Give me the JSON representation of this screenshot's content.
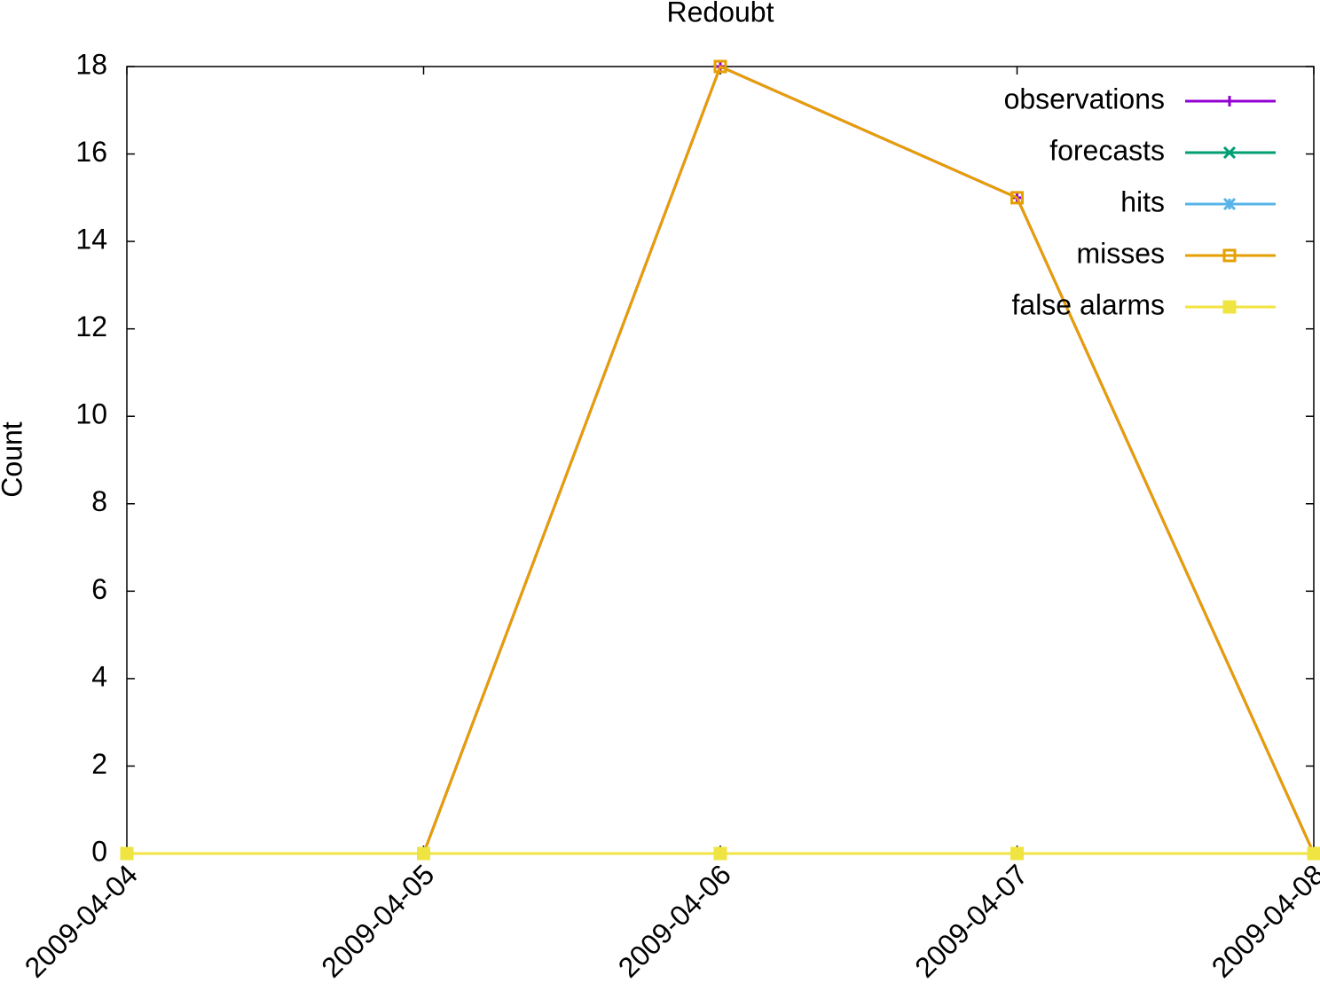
{
  "chart_data": {
    "type": "line",
    "title": "Redoubt",
    "y_label": "Count",
    "x": [
      "2009-04-04",
      "2009-04-05",
      "2009-04-06",
      "2009-04-07",
      "2009-04-08"
    ],
    "xlim": [
      "2009-04-04",
      "2009-04-08"
    ],
    "xticks": [
      "2009-04-04",
      "2009-04-05",
      "2009-04-06",
      "2009-04-07",
      "2009-04-08"
    ],
    "ylim": [
      0,
      18
    ],
    "yticks": [
      0,
      2,
      4,
      6,
      8,
      10,
      12,
      14,
      16,
      18
    ],
    "legend": "upper right",
    "series": [
      {
        "name": "observations",
        "color": "#9400d3",
        "marker": "plus",
        "values": [
          0,
          0,
          18,
          15,
          0
        ]
      },
      {
        "name": "forecasts",
        "color": "#009e73",
        "marker": "cross",
        "values": [
          0,
          0,
          0,
          0,
          0
        ]
      },
      {
        "name": "hits",
        "color": "#56b4e9",
        "marker": "star",
        "values": [
          0,
          0,
          0,
          0,
          0
        ]
      },
      {
        "name": "misses",
        "color": "#e69f00",
        "marker": "open-square",
        "values": [
          0,
          0,
          18,
          15,
          0
        ]
      },
      {
        "name": "false alarms",
        "color": "#f0e442",
        "marker": "filled-square",
        "values": [
          0,
          0,
          0,
          0,
          0
        ]
      }
    ]
  }
}
